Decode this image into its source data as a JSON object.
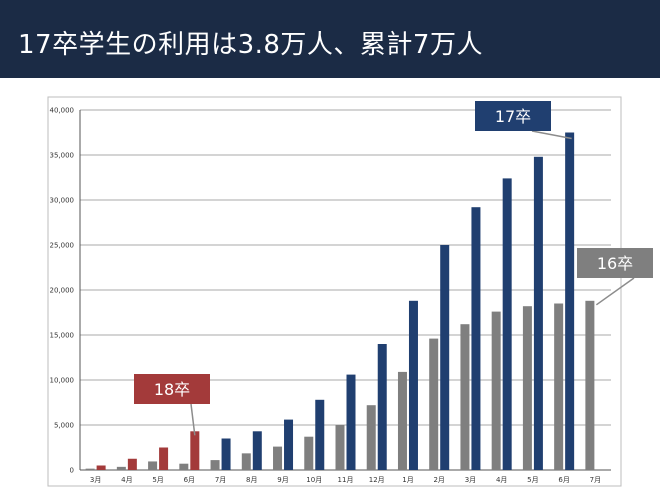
{
  "header": {
    "title": "17卒学生の利用は3.8万人、累計7万人"
  },
  "colors": {
    "title_bg": "#1b2b45",
    "s17": "#203f70",
    "s16": "#7f7f7f",
    "s18": "#a33a3a"
  },
  "chart_data": {
    "type": "bar",
    "title": "",
    "xlabel": "",
    "ylabel": "",
    "ylim": [
      0,
      40000
    ],
    "yticks": [
      "0",
      "5,000",
      "10,000",
      "15,000",
      "20,000",
      "25,000",
      "30,000",
      "35,000",
      "40,000"
    ],
    "grid": true,
    "categories": [
      "3月",
      "4月",
      "5月",
      "6月",
      "7月",
      "8月",
      "9月",
      "10月",
      "11月",
      "12月",
      "1月",
      "2月",
      "3月",
      "4月",
      "5月",
      "6月",
      "7月"
    ],
    "series": [
      {
        "name": "16卒",
        "color": "#7f7f7f",
        "values": [
          150,
          350,
          950,
          700,
          1100,
          1850,
          2600,
          3700,
          5000,
          7200,
          10900,
          14600,
          16200,
          17600,
          18200,
          18500,
          18800
        ]
      },
      {
        "name": "18卒",
        "color": "#a33a3a",
        "values": [
          500,
          1250,
          2500,
          4300,
          null,
          null,
          null,
          null,
          null,
          null,
          null,
          null,
          null,
          null,
          null,
          null,
          null
        ]
      },
      {
        "name": "17卒",
        "color": "#203f70",
        "values": [
          null,
          null,
          null,
          2400,
          3500,
          4300,
          5600,
          7800,
          10600,
          14000,
          18800,
          25000,
          29200,
          32400,
          34800,
          37500,
          null
        ]
      }
    ],
    "annotations": [
      {
        "label": "17卒",
        "color": "#203f70"
      },
      {
        "label": "16卒",
        "color": "#7f7f7f"
      },
      {
        "label": "18卒",
        "color": "#a33a3a"
      }
    ]
  }
}
